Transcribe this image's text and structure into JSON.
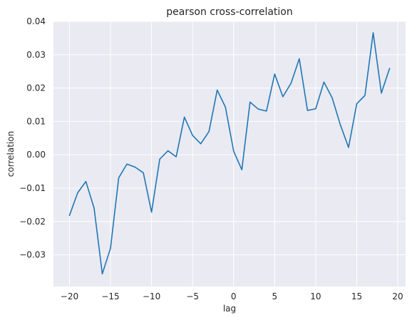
{
  "chart_data": {
    "type": "line",
    "title": "pearson cross-correlation",
    "xlabel": "lag",
    "ylabel": "correlation",
    "xlim": [
      -21.95,
      20.95
    ],
    "ylim": [
      -0.0395,
      0.04
    ],
    "xticks": [
      -20,
      -15,
      -10,
      -5,
      0,
      5,
      10,
      15,
      20
    ],
    "xtick_labels": [
      "−20",
      "−15",
      "−10",
      "−5",
      "0",
      "5",
      "10",
      "15",
      "20"
    ],
    "yticks": [
      -0.03,
      -0.02,
      -0.01,
      0.0,
      0.01,
      0.02,
      0.03,
      0.04
    ],
    "ytick_labels": [
      "−0.03",
      "−0.02",
      "−0.01",
      "0.00",
      "0.01",
      "0.02",
      "0.03",
      "0.04"
    ],
    "grid": true,
    "background": "#eaeaf2",
    "line_color": "#1f77b4",
    "series": [
      {
        "x": [
          -20,
          -19,
          -18,
          -17,
          -16,
          -15,
          -14,
          -13,
          -12,
          -11,
          -10,
          -9,
          -8,
          -7,
          -6,
          -5,
          -4,
          -3,
          -2,
          -1,
          0,
          1,
          2,
          3,
          4,
          5,
          6,
          7,
          8,
          9,
          10,
          11,
          12,
          13,
          14,
          15,
          16,
          17,
          18,
          19
        ],
        "values": [
          -0.0182,
          -0.0114,
          -0.008,
          -0.016,
          -0.0357,
          -0.028,
          -0.0069,
          -0.0028,
          -0.0037,
          -0.0054,
          -0.0172,
          -0.0013,
          0.0012,
          -0.0006,
          0.0113,
          0.0058,
          0.0033,
          0.007,
          0.0194,
          0.0143,
          0.0011,
          -0.0045,
          0.0158,
          0.0137,
          0.0131,
          0.0242,
          0.0174,
          0.0215,
          0.0288,
          0.0133,
          0.0138,
          0.0218,
          0.0171,
          0.009,
          0.0022,
          0.0153,
          0.0178,
          0.0366,
          0.0185,
          0.0259
        ]
      }
    ]
  }
}
